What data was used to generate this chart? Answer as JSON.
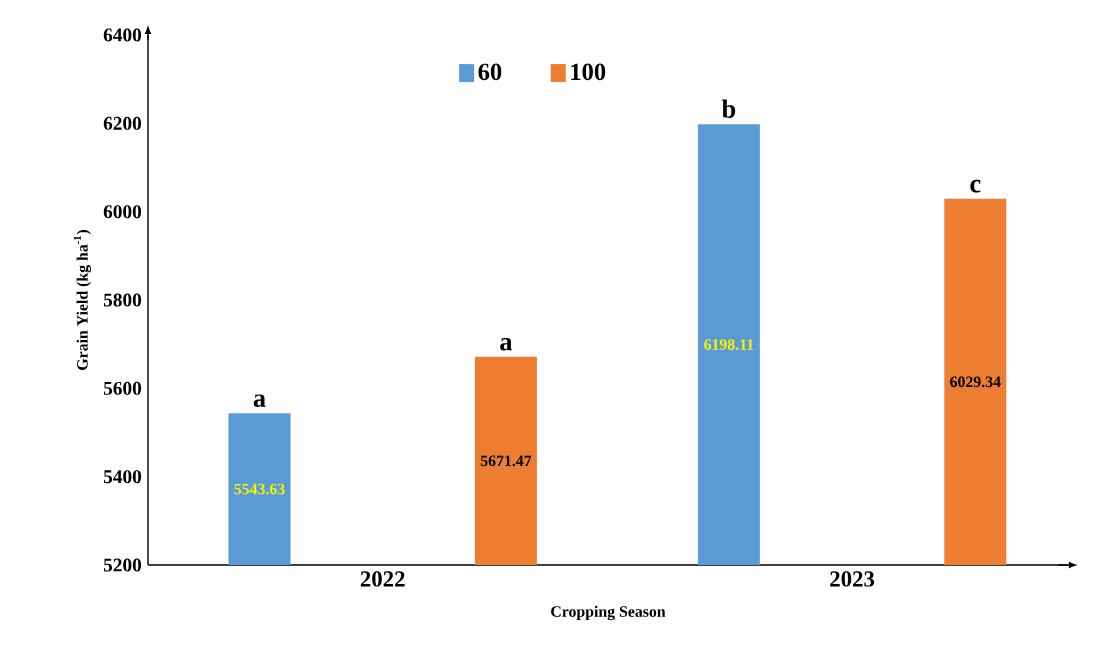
{
  "chart_data": {
    "type": "bar",
    "xlabel": "Cropping Season",
    "ylabel": "Grain Yield (kg ha$^{-1}$)",
    "categories": [
      "2022",
      "2023"
    ],
    "series": [
      {
        "name": "60",
        "color": "#5b9bd5",
        "values": [
          5543.63,
          6198.11
        ],
        "value_labels": [
          "5543.63",
          "6198.11"
        ]
      },
      {
        "name": "100",
        "color": "#ed7d31",
        "values": [
          5671.47,
          6029.34
        ],
        "value_labels": [
          "5671.47",
          "6029.34"
        ]
      }
    ],
    "ylim": [
      5200,
      6400
    ],
    "yticks": [
      5200,
      5400,
      5600,
      5800,
      6000,
      6200,
      6400
    ],
    "grid": false,
    "legend": "top",
    "annotations": [
      "a",
      "a",
      "b",
      "c"
    ]
  }
}
